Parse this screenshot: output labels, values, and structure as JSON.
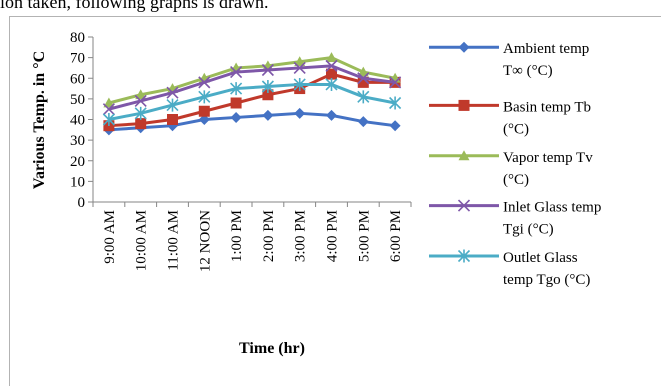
{
  "caption": "ion taken, following graphs is drawn.",
  "chart_data": {
    "type": "line",
    "categories": [
      "9:00 AM",
      "10:00 AM",
      "11:00 AM",
      "12 NOON",
      "1:00 PM",
      "2:00 PM",
      "3:00 PM",
      "4:00 PM",
      "5:00 PM",
      "6:00 PM"
    ],
    "series": [
      {
        "name_lines": [
          "Ambient temp",
          "T∞ (°C)"
        ],
        "color": "#4472c4",
        "marker": "diamond",
        "values": [
          35,
          36,
          37,
          40,
          41,
          42,
          43,
          42,
          39,
          37
        ]
      },
      {
        "name_lines": [
          "Basin temp Tb",
          "(°C)"
        ],
        "color": "#c0392b",
        "marker": "square",
        "values": [
          37,
          38,
          40,
          44,
          48,
          52,
          55,
          62,
          58,
          58
        ]
      },
      {
        "name_lines": [
          "Vapor temp Tv",
          "(°C)"
        ],
        "color": "#9bbb59",
        "marker": "triangle",
        "values": [
          48,
          52,
          55,
          60,
          65,
          66,
          68,
          70,
          63,
          60
        ]
      },
      {
        "name_lines": [
          "Inlet Glass temp",
          "Tgi (°C)"
        ],
        "color": "#7e57a8",
        "marker": "x",
        "values": [
          45,
          49,
          53,
          58,
          63,
          64,
          65,
          66,
          60,
          58
        ]
      },
      {
        "name_lines": [
          "Outlet Glass",
          "temp Tgo (°C)"
        ],
        "color": "#4bacc6",
        "marker": "star",
        "values": [
          40,
          43,
          47,
          51,
          55,
          56,
          57,
          57,
          51,
          48
        ]
      }
    ],
    "xlabel": "Time (hr)",
    "ylabel": "Various Temp. in °C",
    "ylim": [
      0,
      80
    ],
    "yticks": [
      "0",
      "10",
      "20",
      "30",
      "40",
      "50",
      "60",
      "70",
      "80"
    ],
    "grid": false,
    "legend": "right"
  }
}
